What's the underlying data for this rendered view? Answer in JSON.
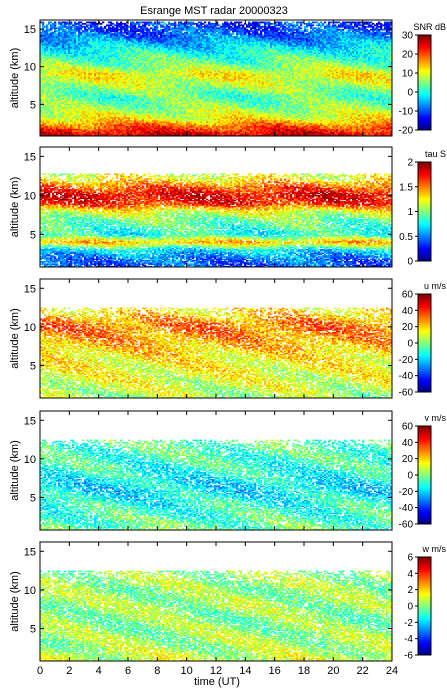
{
  "figure": {
    "title": "Esrange MST radar 20000323",
    "xlabel": "time (UT)"
  },
  "chart_data": {
    "type": "heatmap",
    "x": {
      "label": "time (UT)",
      "range": [
        0,
        24
      ],
      "ticks": [
        0,
        2,
        4,
        6,
        8,
        10,
        12,
        14,
        16,
        18,
        20,
        22,
        24
      ]
    },
    "panels": [
      {
        "id": "snr",
        "ylabel": "altitude (km)",
        "yrange": [
          0.8,
          16.2
        ],
        "yticks": [
          5,
          10,
          15
        ],
        "colorbar": {
          "label": "SNR dB",
          "range": [
            -20,
            30
          ],
          "ticks": [
            -20,
            -10,
            0,
            10,
            20,
            30
          ]
        },
        "profile": {
          "altitude_km": [
            1,
            2,
            3,
            4,
            5,
            6,
            7,
            8,
            9,
            10,
            11,
            12,
            13,
            14,
            15,
            16
          ],
          "value": [
            26,
            20,
            12,
            8,
            5,
            3,
            6,
            9,
            11,
            6,
            3,
            0,
            -4,
            -8,
            -10,
            -12
          ]
        },
        "coverage_top_km": 16,
        "fill_fraction": 1.0
      },
      {
        "id": "tau",
        "ylabel": "altitude (km)",
        "yrange": [
          0.8,
          16.2
        ],
        "yticks": [
          5,
          10,
          15
        ],
        "colorbar": {
          "label": "tau S",
          "range": [
            0,
            2
          ],
          "ticks": [
            0,
            0.5,
            1,
            1.5,
            2
          ]
        },
        "profile": {
          "altitude_km": [
            1,
            2,
            3,
            4,
            5,
            6,
            7,
            8,
            9,
            10,
            11,
            12,
            13
          ],
          "value": [
            0.4,
            0.5,
            0.7,
            1.4,
            0.8,
            0.9,
            1.0,
            1.2,
            1.7,
            1.8,
            1.6,
            1.3,
            1.1
          ]
        },
        "coverage_top_km": 12.8,
        "fill_fraction": 0.82
      },
      {
        "id": "u",
        "ylabel": "altitude (km)",
        "yrange": [
          0.8,
          16.2
        ],
        "yticks": [
          5,
          10,
          15
        ],
        "colorbar": {
          "label": "u m/s",
          "range": [
            -60,
            60
          ],
          "ticks": [
            -60,
            -40,
            -20,
            0,
            20,
            40,
            60
          ]
        },
        "profile": {
          "altitude_km": [
            1,
            2,
            3,
            4,
            5,
            6,
            7,
            8,
            9,
            10,
            11,
            12,
            13
          ],
          "value": [
            5,
            8,
            10,
            12,
            14,
            16,
            20,
            24,
            28,
            32,
            26,
            18,
            12
          ]
        },
        "coverage_top_km": 12.5,
        "fill_fraction": 0.72
      },
      {
        "id": "v",
        "ylabel": "altitude (km)",
        "yrange": [
          0.8,
          16.2
        ],
        "yticks": [
          5,
          10,
          15
        ],
        "colorbar": {
          "label": "v m/s",
          "range": [
            -60,
            60
          ],
          "ticks": [
            -60,
            -40,
            -20,
            0,
            20,
            40,
            60
          ]
        },
        "profile": {
          "altitude_km": [
            1,
            2,
            3,
            4,
            5,
            6,
            7,
            8,
            9,
            10,
            11,
            12,
            13
          ],
          "value": [
            -2,
            -5,
            -8,
            -10,
            -14,
            -18,
            -16,
            -12,
            -10,
            -8,
            -6,
            -4,
            -2
          ]
        },
        "coverage_top_km": 12.5,
        "fill_fraction": 0.72
      },
      {
        "id": "w",
        "ylabel": "altitude (km)",
        "yrange": [
          0.8,
          16.2
        ],
        "yticks": [
          5,
          10,
          15
        ],
        "colorbar": {
          "label": "w m/s",
          "range": [
            -6,
            6
          ],
          "ticks": [
            -6,
            -4,
            -2,
            0,
            2,
            4,
            6
          ]
        },
        "profile": {
          "altitude_km": [
            1,
            2,
            3,
            4,
            5,
            6,
            7,
            8,
            9,
            10,
            11,
            12,
            13
          ],
          "value": [
            0.8,
            0.6,
            0.4,
            0.3,
            0.2,
            0.1,
            0.2,
            0.3,
            0.3,
            0.2,
            0.4,
            0.3,
            0.1
          ]
        },
        "coverage_top_km": 12.5,
        "fill_fraction": 0.75
      }
    ]
  }
}
